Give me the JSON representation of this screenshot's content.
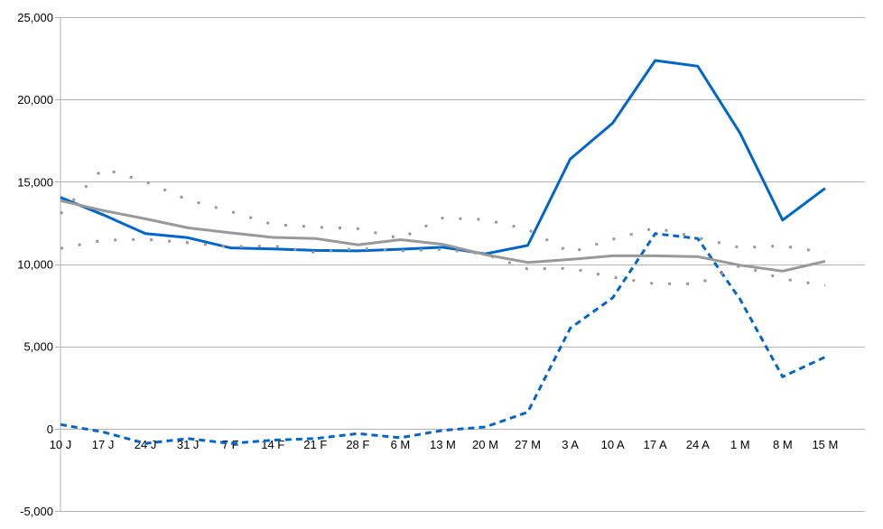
{
  "chart_data": {
    "type": "line",
    "title": "",
    "xlabel": "",
    "ylabel": "",
    "ylim": [
      -5000,
      25000
    ],
    "y_ticks": [
      -5000,
      0,
      5000,
      10000,
      15000,
      20000,
      25000
    ],
    "y_tick_labels": [
      "-5,000",
      "0",
      "5,000",
      "10,000",
      "15,000",
      "20,000",
      "25,000"
    ],
    "grid": true,
    "categories": [
      "10 J",
      "17 J",
      "24 J",
      "31 J",
      "7 F",
      "14 F",
      "21 F",
      "28 F",
      "6 M",
      "13 M",
      "20 M",
      "27 M",
      "3 A",
      "10 A",
      "17 A",
      "24 A",
      "1 M",
      "8 M",
      "15 M"
    ],
    "series": [
      {
        "style": "solid",
        "color": "#0066cc",
        "values": [
          14050,
          13000,
          11850,
          11600,
          10980,
          10920,
          10830,
          10800,
          10900,
          11020,
          10620,
          11130,
          16380,
          18560,
          22370,
          22020,
          17940,
          12670,
          14600
        ]
      },
      {
        "style": "dashed",
        "color": "#0066cc",
        "values": [
          250,
          -200,
          -900,
          -600,
          -900,
          -700,
          -600,
          -300,
          -550,
          -100,
          100,
          1000,
          6100,
          7950,
          11850,
          11550,
          7850,
          3150,
          4350
        ]
      },
      {
        "style": "solid",
        "color": "#999999",
        "values": [
          13850,
          13250,
          12750,
          12200,
          11900,
          11620,
          11550,
          11170,
          11480,
          11200,
          10570,
          10100,
          10280,
          10500,
          10500,
          10450,
          9930,
          9570,
          10170
        ]
      },
      {
        "style": "dotted",
        "color": "#999999",
        "values": [
          13050,
          15800,
          15000,
          13900,
          13200,
          12400,
          12250,
          12150,
          11550,
          12800,
          12700,
          12100,
          10700,
          11500,
          12200,
          11600,
          11000,
          11100,
          10700
        ]
      },
      {
        "style": "dotted",
        "color": "#999999",
        "values": [
          10950,
          11450,
          11500,
          11300,
          11050,
          11100,
          10700,
          10950,
          10800,
          10900,
          10600,
          9700,
          9750,
          9200,
          8800,
          8800,
          9900,
          9100,
          8700
        ]
      }
    ]
  }
}
